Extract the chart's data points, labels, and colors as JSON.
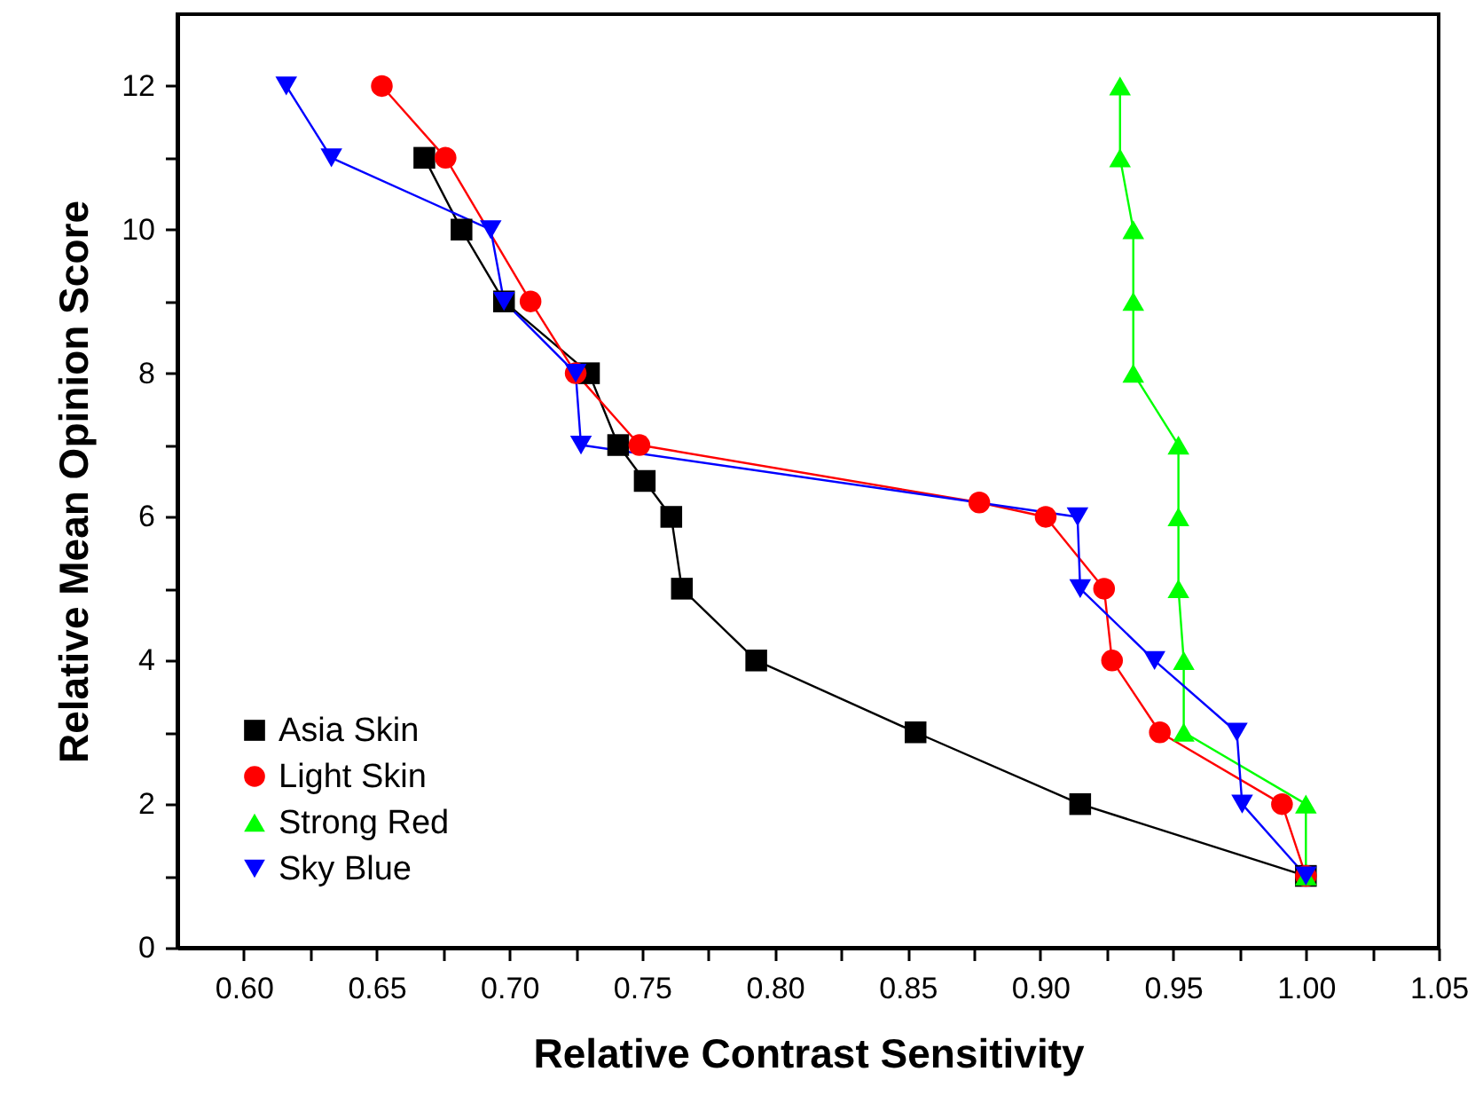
{
  "chart_data": {
    "type": "line",
    "xlabel": "Relative Contrast Sensitivity",
    "ylabel": "Relative Mean Opinion Score",
    "xlim": [
      0.575,
      1.05
    ],
    "ylim": [
      0,
      13
    ],
    "xticks": [
      {
        "value": 0.6,
        "label": "0.60"
      },
      {
        "value": 0.625,
        "label": null
      },
      {
        "value": 0.65,
        "label": "0.65"
      },
      {
        "value": 0.675,
        "label": null
      },
      {
        "value": 0.7,
        "label": "0.70"
      },
      {
        "value": 0.725,
        "label": null
      },
      {
        "value": 0.75,
        "label": "0.75"
      },
      {
        "value": 0.775,
        "label": null
      },
      {
        "value": 0.8,
        "label": "0.80"
      },
      {
        "value": 0.825,
        "label": null
      },
      {
        "value": 0.85,
        "label": "0.85"
      },
      {
        "value": 0.875,
        "label": null
      },
      {
        "value": 0.9,
        "label": "0.90"
      },
      {
        "value": 0.925,
        "label": null
      },
      {
        "value": 0.95,
        "label": "0.95"
      },
      {
        "value": 0.975,
        "label": null
      },
      {
        "value": 1.0,
        "label": "1.00"
      },
      {
        "value": 1.025,
        "label": null
      },
      {
        "value": 1.05,
        "label": "1.05"
      }
    ],
    "yticks": [
      0,
      {
        "value": 1,
        "label": null
      },
      2,
      {
        "value": 3,
        "label": null
      },
      4,
      {
        "value": 5,
        "label": null
      },
      6,
      {
        "value": 7,
        "label": null
      },
      8,
      {
        "value": 9,
        "label": null
      },
      10,
      {
        "value": 11,
        "label": null
      },
      12
    ],
    "grid": false,
    "legend": "bottom left",
    "line_style": "solid",
    "series": [
      {
        "name": "Asia Skin",
        "color": "#000000",
        "marker": "square",
        "x": [
          0.668,
          0.682,
          0.698,
          0.73,
          0.741,
          0.751,
          0.761,
          0.765,
          0.793,
          0.853,
          0.915,
          1.0
        ],
        "values": [
          11,
          10,
          9,
          8,
          7,
          6.5,
          6,
          5,
          4,
          3,
          2,
          1
        ]
      },
      {
        "name": "Light Skin",
        "color": "#ff0000",
        "marker": "circle",
        "x": [
          0.652,
          0.676,
          0.708,
          0.725,
          0.749,
          0.877,
          0.902,
          0.924,
          0.927,
          0.945,
          0.991,
          1.0
        ],
        "values": [
          12,
          11,
          9,
          8,
          7,
          6.2,
          6,
          5,
          4,
          3,
          2,
          1
        ]
      },
      {
        "name": "Strong Red",
        "color": "#00ff00",
        "marker": "triangle",
        "x": [
          0.93,
          0.93,
          0.935,
          0.935,
          0.935,
          0.952,
          0.952,
          0.952,
          0.954,
          0.954,
          1.0,
          1.0
        ],
        "values": [
          12,
          11,
          10,
          9,
          8,
          7,
          6,
          5,
          4,
          3,
          2,
          1
        ]
      },
      {
        "name": "Sky Blue",
        "color": "#0000ff",
        "marker": "triangle-down",
        "x": [
          0.616,
          0.633,
          0.693,
          0.698,
          0.725,
          0.727,
          0.914,
          0.915,
          0.943,
          0.974,
          0.976,
          1.0
        ],
        "values": [
          12,
          11,
          10,
          9,
          8,
          7,
          6,
          5,
          4,
          3,
          2,
          1
        ]
      }
    ]
  }
}
